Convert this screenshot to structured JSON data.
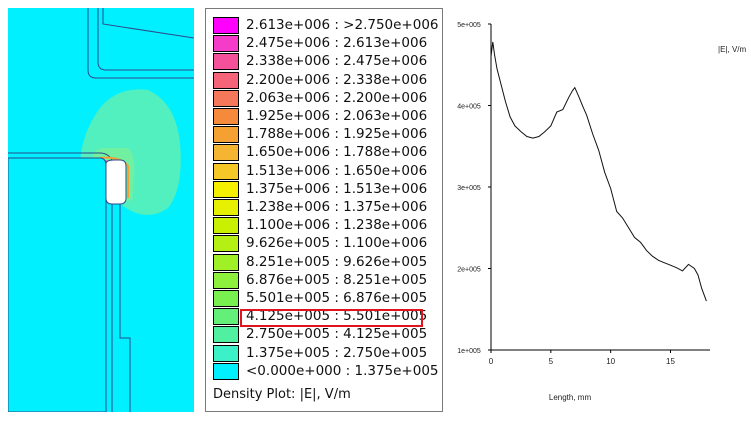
{
  "field_view": {
    "background_color": "#00f0ff",
    "hotspot_color": "#5cf0b8"
  },
  "legend": {
    "caption": "Density Plot: |E|, V/m",
    "highlighted_index": 16,
    "rows": [
      {
        "label": "2.613e+006 : >2.750e+006",
        "color": "#ff00ff"
      },
      {
        "label": "2.475e+006 : 2.613e+006",
        "color": "#f53cc8"
      },
      {
        "label": "2.338e+006 : 2.475e+006",
        "color": "#f5509a"
      },
      {
        "label": "2.200e+006 : 2.338e+006",
        "color": "#f56478"
      },
      {
        "label": "2.063e+006 : 2.200e+006",
        "color": "#f5785a"
      },
      {
        "label": "1.925e+006 : 2.063e+006",
        "color": "#f58a3c"
      },
      {
        "label": "1.788e+006 : 1.925e+006",
        "color": "#f5a032"
      },
      {
        "label": "1.650e+006 : 1.788e+006",
        "color": "#f5b432"
      },
      {
        "label": "1.513e+006 : 1.650e+006",
        "color": "#f5c828"
      },
      {
        "label": "1.375e+006 : 1.513e+006",
        "color": "#f5f000"
      },
      {
        "label": "1.238e+006 : 1.375e+006",
        "color": "#e6f000"
      },
      {
        "label": "1.100e+006 : 1.238e+006",
        "color": "#c8f000"
      },
      {
        "label": "9.626e+005 : 1.100e+006",
        "color": "#b4f014"
      },
      {
        "label": "8.251e+005 : 9.626e+005",
        "color": "#a0f028"
      },
      {
        "label": "6.876e+005 : 8.251e+005",
        "color": "#8cf03c"
      },
      {
        "label": "5.501e+005 : 6.876e+005",
        "color": "#78f050"
      },
      {
        "label": "4.125e+005 : 5.501e+005",
        "color": "#64f078"
      },
      {
        "label": "2.750e+005 : 4.125e+005",
        "color": "#50f0a0"
      },
      {
        "label": "1.375e+005 : 2.750e+005",
        "color": "#3cf0c8"
      },
      {
        "label": "<0.000e+000 : 1.375e+005",
        "color": "#00f0ff"
      }
    ]
  },
  "chart_data": {
    "type": "line",
    "title": "",
    "series_label": "|E|, V/m",
    "xlabel": "Length, mm",
    "ylabel": "",
    "xlim": [
      0,
      18.3
    ],
    "ylim": [
      100000,
      500000
    ],
    "x_ticks": [
      0,
      5,
      10,
      15
    ],
    "x_tick_labels": [
      "0",
      "5",
      "10",
      "15"
    ],
    "y_ticks": [
      100000,
      200000,
      300000,
      400000,
      500000
    ],
    "y_tick_labels": [
      "1e+005",
      "2e+005",
      "3e+005",
      "4e+005",
      "5e+005"
    ],
    "grid": false,
    "series": [
      {
        "x": [
          0,
          0.15,
          0.3,
          0.5,
          0.8,
          1.2,
          1.6,
          2.0,
          2.5,
          3.0,
          3.5,
          4.0,
          4.5,
          5.0,
          5.5,
          6.0,
          6.5,
          6.8,
          7.0,
          7.3,
          7.7,
          8.0,
          8.5,
          9.0,
          9.5,
          10.0,
          10.5,
          11.0,
          11.5,
          12.0,
          12.5,
          13.0,
          13.5,
          14.0,
          14.5,
          15.0,
          15.5,
          16.0,
          16.5,
          17.0,
          17.3,
          17.6,
          18.0
        ],
        "y": [
          460000,
          478000,
          462000,
          445000,
          428000,
          405000,
          386000,
          375000,
          368000,
          362000,
          360000,
          362000,
          368000,
          375000,
          392000,
          395000,
          410000,
          418000,
          422000,
          412000,
          398000,
          388000,
          365000,
          345000,
          318000,
          298000,
          270000,
          262000,
          250000,
          238000,
          232000,
          222000,
          215000,
          210000,
          207000,
          204000,
          201000,
          197000,
          205000,
          200000,
          192000,
          176000,
          160000
        ]
      }
    ]
  }
}
